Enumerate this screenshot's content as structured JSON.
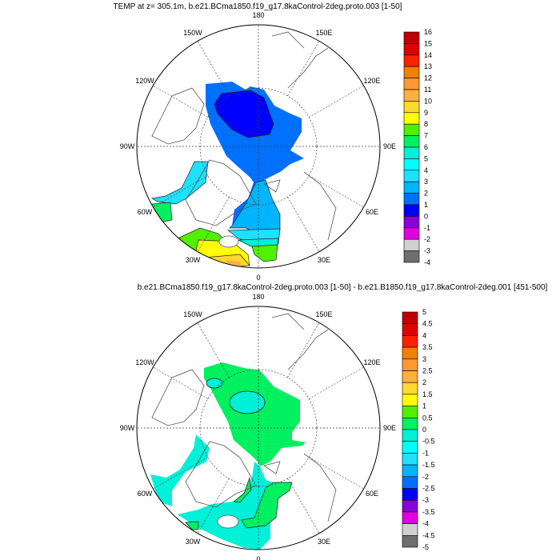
{
  "panels": [
    {
      "title": "TEMP at z= 305.1m, b.e21.BCma1850.f19_g17.8kaControl-2deg.proto.003 [1-50]",
      "lon_labels": [
        "180",
        "150E",
        "120E",
        "90E",
        "60E",
        "30E",
        "0",
        "30W",
        "60W",
        "90W",
        "120W",
        "150W"
      ],
      "colorbar": {
        "labels": [
          "16",
          "15",
          "14",
          "13",
          "12",
          "11",
          "10",
          "9",
          "8",
          "7",
          "6",
          "5",
          "4",
          "3",
          "2",
          "1",
          "0",
          "-1",
          "-2",
          "-3",
          "-4"
        ]
      }
    },
    {
      "title": "b.e21.BCma1850.f19_g17.8kaControl-2deg.proto.003 [1-50] - b.e21.B1850.f19_g17.8kaControl-2deg.001 [451-500]",
      "lon_labels": [
        "180",
        "150E",
        "120E",
        "90E",
        "60E",
        "30E",
        "0",
        "30W",
        "60W",
        "90W",
        "120W",
        "150W"
      ],
      "colorbar": {
        "labels": [
          "5",
          "4.5",
          "4",
          "3.5",
          "3",
          "2.5",
          "2",
          "1.5",
          "1",
          "0.5",
          "0",
          "-0.5",
          "-1",
          "-1.5",
          "-2",
          "-2.5",
          "-3",
          "-3.5",
          "-4",
          "-4.5",
          "-5"
        ]
      }
    }
  ],
  "colors_top_to_bottom": [
    "#c00000",
    "#e00000",
    "#ff2000",
    "#f08000",
    "#ff9830",
    "#ffb040",
    "#ffd830",
    "#ffff00",
    "#50f000",
    "#00f060",
    "#00f0d8",
    "#00ffff",
    "#1ee0ff",
    "#00b4ff",
    "#0070ff",
    "#0000ff",
    "#8a00d8",
    "#e000e0",
    "#d0d0d0",
    "#6e6e6e"
  ]
}
